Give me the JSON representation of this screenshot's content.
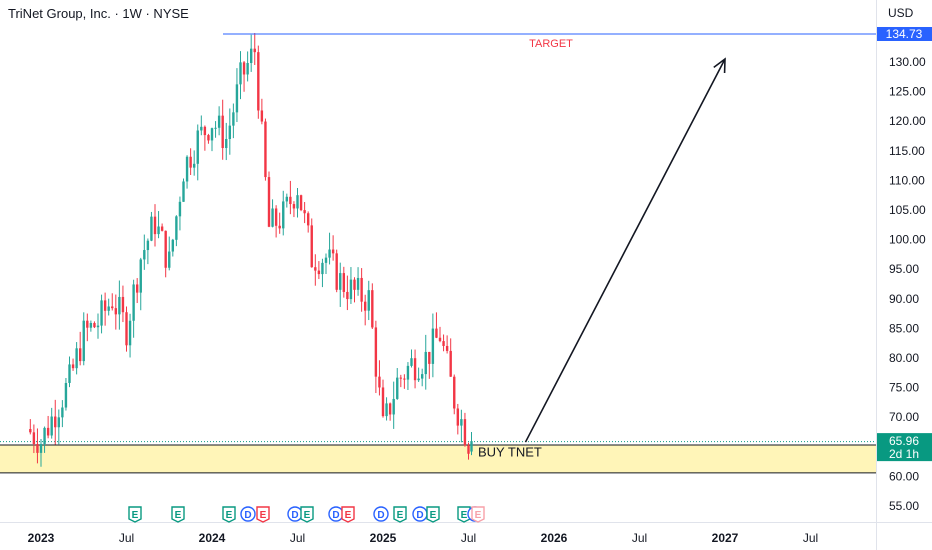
{
  "header": {
    "title": "TriNet Group, Inc. · 1W · NYSE",
    "currency": "USD"
  },
  "colors": {
    "up": "#26a69a",
    "down": "#f23645",
    "target_line": "#2962ff",
    "target_text": "#f23645",
    "buy_zone_fill": "#fff5b8",
    "price_line": "#089981"
  },
  "chart_data": {
    "type": "candlestick",
    "y_axis": {
      "ticks": [
        "55.00",
        "60.00",
        "65.00",
        "70.00",
        "75.00",
        "80.00",
        "85.00",
        "90.00",
        "95.00",
        "100.00",
        "105.00",
        "110.00",
        "115.00",
        "120.00",
        "125.00",
        "130.00"
      ],
      "range": [
        52.5,
        137.0
      ]
    },
    "x_axis": {
      "ticks": [
        "2023",
        "Jul",
        "2024",
        "Jul",
        "2025",
        "Jul",
        "2026",
        "Jul",
        "2027",
        "Jul"
      ],
      "bold": [
        "2023",
        "2024",
        "2025",
        "2026",
        "2027"
      ]
    },
    "price_tags": {
      "target": "134.73",
      "current": "65.96",
      "countdown": "2d 1h"
    },
    "annotations": {
      "target_label": "TARGET",
      "buy_label": "BUY TNET",
      "buy_zone": [
        60.6,
        65.3
      ],
      "projection_arrow": {
        "from_date": "2025-11",
        "from_price": 65.8,
        "to_date": "2027-01",
        "to_price": 130.5
      }
    },
    "price_path_approx": [
      {
        "date": "2022-12",
        "close": 68
      },
      {
        "date": "2023-01",
        "close": 66
      },
      {
        "date": "2023-02",
        "close": 71
      },
      {
        "date": "2023-03",
        "close": 76
      },
      {
        "date": "2023-04",
        "close": 84
      },
      {
        "date": "2023-05",
        "close": 86
      },
      {
        "date": "2023-06",
        "close": 90
      },
      {
        "date": "2023-07",
        "close": 85
      },
      {
        "date": "2023-08",
        "close": 97
      },
      {
        "date": "2023-09",
        "close": 103
      },
      {
        "date": "2023-10",
        "close": 96
      },
      {
        "date": "2023-11",
        "close": 112
      },
      {
        "date": "2023-12",
        "close": 117
      },
      {
        "date": "2024-01",
        "close": 120
      },
      {
        "date": "2024-02",
        "close": 117
      },
      {
        "date": "2024-03",
        "close": 127
      },
      {
        "date": "2024-04",
        "close": 132
      },
      {
        "date": "2024-05",
        "close": 102
      },
      {
        "date": "2024-06",
        "close": 104
      },
      {
        "date": "2024-07",
        "close": 109
      },
      {
        "date": "2024-08",
        "close": 97
      },
      {
        "date": "2024-09",
        "close": 97
      },
      {
        "date": "2024-10",
        "close": 93
      },
      {
        "date": "2024-11",
        "close": 91
      },
      {
        "date": "2024-12",
        "close": 90
      },
      {
        "date": "2025-01",
        "close": 68
      },
      {
        "date": "2025-02",
        "close": 76
      },
      {
        "date": "2025-03",
        "close": 79
      },
      {
        "date": "2025-04",
        "close": 80
      },
      {
        "date": "2025-05",
        "close": 84
      },
      {
        "date": "2025-06",
        "close": 73
      },
      {
        "date": "2025-07",
        "close": 65.96
      }
    ],
    "events": [
      "E",
      "E",
      "E",
      "D",
      "E",
      "D",
      "E",
      "D",
      "E",
      "D",
      "E",
      "D",
      "E",
      "E",
      "D",
      "E"
    ]
  }
}
